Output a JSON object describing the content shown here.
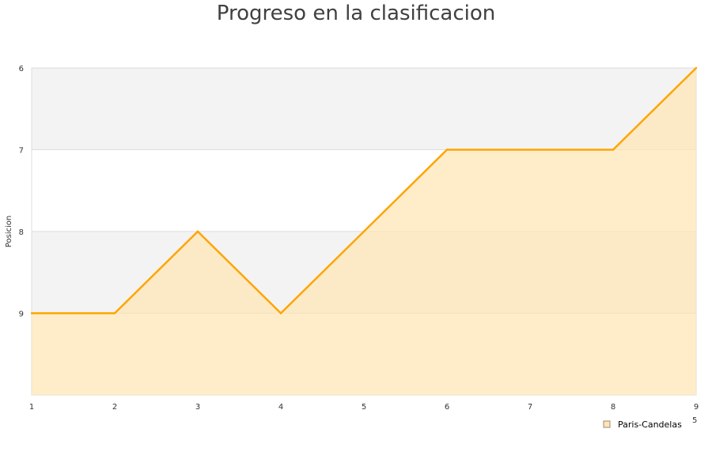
{
  "chart_data": {
    "type": "area",
    "title": "Progreso en la clasificacion",
    "xlabel": "5",
    "ylabel": "Posicion",
    "x": [
      1,
      2,
      3,
      4,
      5,
      6,
      7,
      8,
      9
    ],
    "series": [
      {
        "name": "Paris-Candelas",
        "values": [
          9,
          9,
          8,
          9,
          8,
          7,
          7,
          7,
          6
        ]
      }
    ],
    "xlim": [
      1,
      9
    ],
    "ylim": [
      6,
      10
    ],
    "y_inverted": true,
    "yticks": [
      6,
      7,
      8,
      9
    ],
    "xticks": [
      1,
      2,
      3,
      4,
      5,
      6,
      7,
      8,
      9
    ],
    "grid": "alternating horizontal bands",
    "legend_placement": "bottom-right",
    "colors": {
      "line": "#FFA500",
      "fill": "#FFE6B4",
      "band": "#F3F3F3"
    }
  }
}
